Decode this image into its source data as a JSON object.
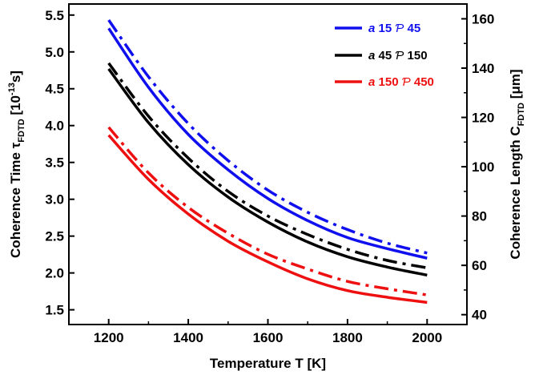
{
  "chart_data": {
    "type": "line",
    "xlabel": "Temperature T [K]",
    "ylabel_left": {
      "prefix": "Coherence Time ",
      "symbol": "τ",
      "symbol_sub": "FDTD",
      "unit_open": " [10",
      "unit_sup": "-13",
      "unit_close": "s]"
    },
    "ylabel_right": {
      "prefix": "Coherence Length C",
      "sub": "FDTD",
      "unit": " [μm]"
    },
    "xlim": [
      1100,
      2100
    ],
    "ylim_left": [
      1.3,
      5.65
    ],
    "ylim_right": [
      36,
      166
    ],
    "x_ticks": [
      1200,
      1400,
      1600,
      1800,
      2000
    ],
    "x_tick_labels": [
      "1200",
      "1400",
      "1600",
      "1800",
      "2000"
    ],
    "y_left_ticks": [
      1.5,
      2.0,
      2.5,
      3.0,
      3.5,
      4.0,
      4.5,
      5.0,
      5.5
    ],
    "y_left_tick_labels": [
      "1.5",
      "2.0",
      "2.5",
      "3.0",
      "3.5",
      "4.0",
      "4.5",
      "5.0",
      "5.5"
    ],
    "y_right_ticks": [
      40,
      60,
      80,
      100,
      120,
      140,
      160
    ],
    "y_right_tick_labels": [
      "40",
      "60",
      "80",
      "100",
      "120",
      "140",
      "160"
    ],
    "grid": false,
    "legend_position": "top-right",
    "legend": [
      {
        "a_symbol": "a",
        "a_value": " 15 ",
        "p_symbol": "Ƥ",
        "p_value": " 45",
        "color": "#1010ee"
      },
      {
        "a_symbol": "a",
        "a_value": " 45 ",
        "p_symbol": "Ƥ",
        "p_value": " 150",
        "color": "#000000"
      },
      {
        "a_symbol": "a",
        "a_value": " 150 ",
        "p_symbol": "Ƥ",
        "p_value": " 450",
        "color": "#ee1010"
      }
    ],
    "x": [
      1200,
      1300,
      1400,
      1500,
      1600,
      1700,
      1800,
      1900,
      2000
    ],
    "series": [
      {
        "axis": "left",
        "style": "solid",
        "color": "#1010ee",
        "values": [
          5.32,
          4.52,
          3.88,
          3.4,
          3.01,
          2.71,
          2.48,
          2.33,
          2.2
        ]
      },
      {
        "axis": "left",
        "style": "solid",
        "color": "#000000",
        "values": [
          4.77,
          4.04,
          3.47,
          3.03,
          2.69,
          2.42,
          2.22,
          2.08,
          1.97
        ]
      },
      {
        "axis": "left",
        "style": "solid",
        "color": "#ee1010",
        "values": [
          3.87,
          3.27,
          2.8,
          2.43,
          2.15,
          1.92,
          1.76,
          1.67,
          1.6
        ]
      },
      {
        "axis": "right",
        "style": "dashdot",
        "color": "#1010ee",
        "values": [
          159.5,
          136.5,
          117.5,
          102.5,
          90.5,
          81.5,
          74.5,
          69.0,
          65.0
        ]
      },
      {
        "axis": "right",
        "style": "dashdot",
        "color": "#000000",
        "values": [
          142.0,
          120.5,
          103.5,
          90.0,
          80.0,
          72.5,
          66.5,
          62.0,
          59.0
        ]
      },
      {
        "axis": "right",
        "style": "dashdot",
        "color": "#ee1010",
        "values": [
          116.0,
          97.5,
          83.5,
          73.0,
          64.5,
          58.5,
          53.5,
          50.5,
          48.0
        ]
      }
    ]
  }
}
